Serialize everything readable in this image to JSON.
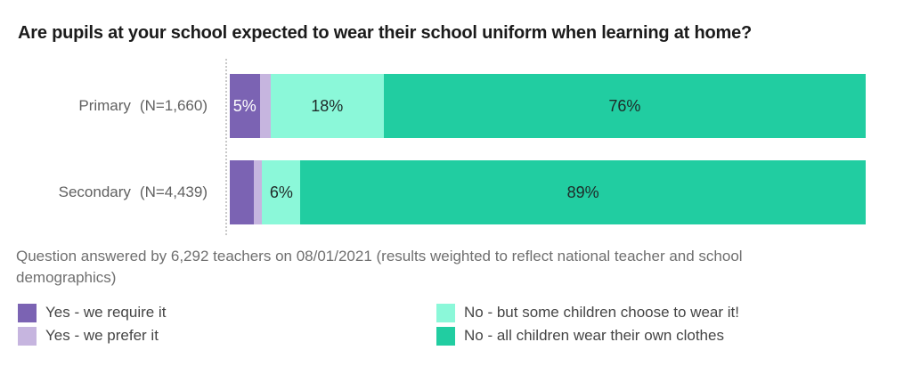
{
  "chart_data": {
    "type": "bar",
    "variant": "horizontal_stacked",
    "unit": "percent",
    "title": "Are pupils at your school expected to wear their school uniform when learning at home?",
    "xlim": [
      0,
      100
    ],
    "grid": false,
    "legend_position": "bottom",
    "categories": [
      "Primary",
      "Secondary"
    ],
    "rows": [
      {
        "key": "primary",
        "group_label": "Primary",
        "n_label": "(N=1,660)",
        "segments": [
          {
            "series": "Yes - we require it",
            "value": 5,
            "display": "5%",
            "width_pct": 4.7,
            "color": "#7b63b3",
            "text_color": "#ffffff"
          },
          {
            "series": "Yes - we prefer it",
            "value": 2,
            "display": "",
            "width_pct": 1.7,
            "color": "#c6b5df",
            "text_color": "#1e2a28"
          },
          {
            "series": "No - but some children choose to wear it!",
            "value": 18,
            "display": "18%",
            "width_pct": 17.8,
            "color": "#8bf8d9",
            "text_color": "#1e2a28"
          },
          {
            "series": "No - all children wear their own clothes",
            "value": 76,
            "display": "76%",
            "width_pct": 75.8,
            "color": "#21cda1",
            "text_color": "#1e2a28"
          }
        ]
      },
      {
        "key": "secondary",
        "group_label": "Secondary",
        "n_label": "(N=4,439)",
        "segments": [
          {
            "series": "Yes - we require it",
            "value": 4,
            "display": "",
            "width_pct": 3.8,
            "color": "#7b63b3",
            "text_color": "#ffffff"
          },
          {
            "series": "Yes - we prefer it",
            "value": 1,
            "display": "",
            "width_pct": 1.3,
            "color": "#c6b5df",
            "text_color": "#1e2a28"
          },
          {
            "series": "No - but some children choose to wear it!",
            "value": 6,
            "display": "6%",
            "width_pct": 6.0,
            "color": "#8bf8d9",
            "text_color": "#1e2a28"
          },
          {
            "series": "No - all children wear their own clothes",
            "value": 89,
            "display": "89%",
            "width_pct": 88.9,
            "color": "#21cda1",
            "text_color": "#1e2a28"
          }
        ]
      }
    ],
    "legend": [
      {
        "key": "require",
        "label": "Yes - we require it",
        "color": "#7b63b3"
      },
      {
        "key": "prefer",
        "label": "Yes - we prefer it",
        "color": "#c6b5df"
      },
      {
        "key": "choose",
        "label": "No - but some children choose to wear it!",
        "color": "#8bf8d9"
      },
      {
        "key": "own",
        "label": "No - all children wear their own clothes",
        "color": "#21cda1"
      }
    ]
  },
  "caption": {
    "line1": "Question answered by 6,292 teachers on 08/01/2021 (results weighted to reflect national teacher and school",
    "line2": "demographics)"
  },
  "colors": {
    "title_text": "#1b1b1b",
    "row_label_text": "#616161",
    "caption_text": "#6f6f6f",
    "legend_text": "#454545",
    "axis_dotted_line": "#c9c9c9",
    "background": "#ffffff"
  }
}
